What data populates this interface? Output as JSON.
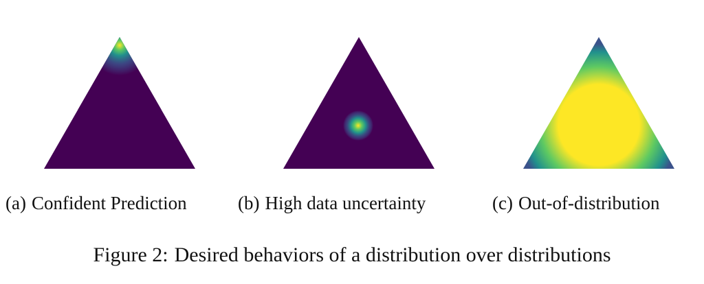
{
  "colors": {
    "background": "#440154",
    "low": "#3b528b",
    "mid": "#21918c",
    "high": "#5ec962",
    "peak": "#fde725"
  },
  "panels": [
    {
      "tag": "(a)",
      "caption": "Confident Prediction"
    },
    {
      "tag": "(b)",
      "caption": "High data uncertainty"
    },
    {
      "tag": "(c)",
      "caption": "Out-of-distribution"
    }
  ],
  "figure": {
    "label": "Figure 2:",
    "caption": "Desired behaviors of a distribution over distributions"
  }
}
